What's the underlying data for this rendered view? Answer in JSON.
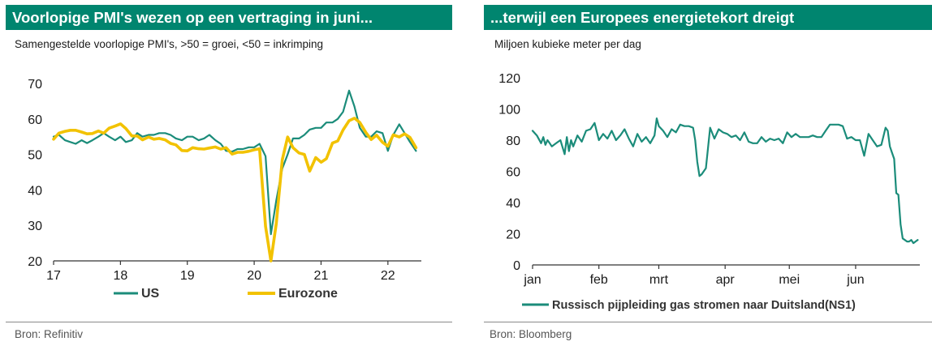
{
  "colors": {
    "brand": "#00856f",
    "us": "#1b8c7a",
    "eurozone": "#f2c200",
    "ns1": "#1b8c7a"
  },
  "left": {
    "title": "Voorlopige PMI's wezen op een vertraging in juni...",
    "subtitle": "Samengestelde voorlopige PMI's, >50 = groei, <50 = inkrimping",
    "source": "Bron: Refinitiv"
  },
  "right": {
    "title": "...terwijl een Europees energietekort dreigt",
    "subtitle": "Miljoen kubieke meter per dag",
    "source": "Bron: Bloomberg"
  },
  "chart_data": [
    {
      "type": "line",
      "title": "Voorlopige PMI's wezen op een vertraging in juni...",
      "subtitle": "Samengestelde voorlopige PMI's, >50 = groei, <50 = inkrimping",
      "xlim": [
        2017,
        2022.5
      ],
      "ylim": [
        20,
        70
      ],
      "xticks": [
        2017,
        2018,
        2019,
        2020,
        2021,
        2022
      ],
      "xtick_labels": [
        "17",
        "18",
        "19",
        "20",
        "21",
        "22"
      ],
      "yticks": [
        20,
        30,
        40,
        50,
        60,
        70
      ],
      "grid": false,
      "legend": "bottom",
      "series": [
        {
          "name": "US",
          "color": "#1b8c7a",
          "x": [
            2017.0,
            2017.08,
            2017.17,
            2017.25,
            2017.33,
            2017.42,
            2017.5,
            2017.58,
            2017.67,
            2017.75,
            2017.83,
            2017.92,
            2018.0,
            2018.08,
            2018.17,
            2018.25,
            2018.33,
            2018.42,
            2018.5,
            2018.58,
            2018.67,
            2018.75,
            2018.83,
            2018.92,
            2019.0,
            2019.08,
            2019.17,
            2019.25,
            2019.33,
            2019.42,
            2019.5,
            2019.58,
            2019.67,
            2019.75,
            2019.83,
            2019.92,
            2020.0,
            2020.08,
            2020.17,
            2020.25,
            2020.33,
            2020.42,
            2020.5,
            2020.58,
            2020.67,
            2020.75,
            2020.83,
            2020.92,
            2021.0,
            2021.08,
            2021.17,
            2021.25,
            2021.33,
            2021.42,
            2021.5,
            2021.58,
            2021.67,
            2021.75,
            2021.83,
            2021.92,
            2022.0,
            2022.08,
            2022.17,
            2022.25,
            2022.33,
            2022.42
          ],
          "y": [
            55,
            55.5,
            54,
            53.5,
            53,
            54,
            53.2,
            54,
            55,
            56,
            55,
            54,
            55,
            53.5,
            54,
            56,
            55,
            55.5,
            55.5,
            56,
            56,
            55.5,
            54.5,
            54,
            55,
            55,
            54,
            54.5,
            55.5,
            54,
            53,
            51,
            50.8,
            51.5,
            51.5,
            52,
            52,
            53,
            49.5,
            27.5,
            37,
            46,
            50,
            54.5,
            54.5,
            55.5,
            57,
            57.5,
            57.5,
            59,
            59,
            60,
            62,
            68,
            63.5,
            57.5,
            55,
            55,
            56.5,
            56,
            51,
            55.5,
            58.5,
            56,
            53.5,
            51
          ]
        },
        {
          "name": "Eurozone",
          "color": "#f2c200",
          "x": [
            2017.0,
            2017.08,
            2017.17,
            2017.25,
            2017.33,
            2017.42,
            2017.5,
            2017.58,
            2017.67,
            2017.75,
            2017.83,
            2017.92,
            2018.0,
            2018.08,
            2018.17,
            2018.25,
            2018.33,
            2018.42,
            2018.5,
            2018.58,
            2018.67,
            2018.75,
            2018.83,
            2018.92,
            2019.0,
            2019.08,
            2019.17,
            2019.25,
            2019.33,
            2019.42,
            2019.5,
            2019.58,
            2019.67,
            2019.75,
            2019.83,
            2019.92,
            2020.0,
            2020.08,
            2020.17,
            2020.25,
            2020.33,
            2020.42,
            2020.5,
            2020.58,
            2020.67,
            2020.75,
            2020.83,
            2020.92,
            2021.0,
            2021.08,
            2021.17,
            2021.25,
            2021.33,
            2021.42,
            2021.5,
            2021.58,
            2021.67,
            2021.75,
            2021.83,
            2021.92,
            2022.0,
            2022.08,
            2022.17,
            2022.25,
            2022.33,
            2022.42
          ],
          "y": [
            54.3,
            56,
            56.5,
            56.8,
            56.8,
            56.3,
            55.8,
            55.9,
            56.6,
            56,
            57.4,
            58,
            58.6,
            57.3,
            55.2,
            55.2,
            54.1,
            54.9,
            54.3,
            54.5,
            54.1,
            53.1,
            52.7,
            51.1,
            51,
            51.9,
            51.6,
            51.5,
            51.8,
            52.1,
            51.5,
            51.9,
            50.1,
            50.6,
            50.6,
            50.9,
            51.3,
            51.6,
            29.7,
            13.6,
            30.5,
            48.5,
            54.9,
            51.9,
            50.4,
            50,
            45.3,
            49.1,
            47.8,
            48.8,
            53.2,
            53.8,
            56.9,
            59.5,
            60.2,
            59,
            56.2,
            54.2,
            55.4,
            53.4,
            52.3,
            55.5,
            54.9,
            55.8,
            54.8,
            51.9
          ]
        }
      ]
    },
    {
      "type": "line",
      "title": "...terwijl een Europees energietekort dreigt",
      "subtitle": "Miljoen kubieke meter per dag",
      "xlim": [
        1,
        182
      ],
      "ylim": [
        0,
        120
      ],
      "xticks": [
        1,
        32,
        60,
        91,
        121,
        152
      ],
      "xtick_labels": [
        "jan",
        "feb",
        "mrt",
        "apr",
        "mei",
        "jun"
      ],
      "yticks": [
        0,
        20,
        40,
        60,
        80,
        100,
        120
      ],
      "grid": false,
      "legend": "bottom",
      "series": [
        {
          "name": "Russisch pijpleiding gas stromen naar Duitsland(NS1)",
          "color": "#1b8c7a",
          "x": [
            1,
            3,
            5,
            6,
            7,
            8,
            9,
            10,
            12,
            14,
            16,
            17,
            18,
            19,
            20,
            22,
            24,
            26,
            28,
            30,
            32,
            34,
            36,
            38,
            40,
            42,
            44,
            46,
            48,
            50,
            52,
            54,
            56,
            58,
            59,
            60,
            62,
            64,
            66,
            68,
            70,
            72,
            74,
            76,
            77,
            78,
            79,
            80,
            81,
            82,
            84,
            86,
            88,
            90,
            92,
            94,
            96,
            98,
            100,
            102,
            104,
            106,
            108,
            110,
            112,
            114,
            116,
            118,
            120,
            122,
            124,
            126,
            128,
            130,
            132,
            134,
            136,
            138,
            140,
            142,
            144,
            146,
            148,
            150,
            152,
            154,
            156,
            158,
            160,
            162,
            164,
            166,
            167,
            168,
            169,
            170,
            171,
            172,
            173,
            174,
            175,
            176,
            177,
            178,
            179,
            180,
            181
          ],
          "y": [
            86,
            83,
            78,
            82,
            77,
            80,
            78,
            76,
            78,
            80,
            71,
            82,
            73,
            80,
            76,
            83,
            79,
            86,
            87,
            91,
            80,
            84,
            81,
            86,
            80,
            83,
            87,
            81,
            76,
            84,
            79,
            82,
            78,
            83,
            94,
            89,
            86,
            82,
            87,
            85,
            90,
            89,
            89,
            88,
            80,
            66,
            57,
            58,
            60,
            62,
            88,
            81,
            87,
            85,
            84,
            82,
            83,
            80,
            85,
            79,
            78,
            78,
            82,
            79,
            81,
            80,
            81,
            78,
            85,
            82,
            84,
            82,
            82,
            82,
            83,
            82,
            82,
            86,
            90,
            90,
            90,
            89,
            81,
            82,
            80,
            80,
            70,
            84,
            80,
            76,
            77,
            88,
            86,
            76,
            72,
            68,
            46,
            45,
            26,
            17,
            16,
            15,
            15,
            16,
            14,
            15,
            16
          ]
        }
      ]
    }
  ]
}
